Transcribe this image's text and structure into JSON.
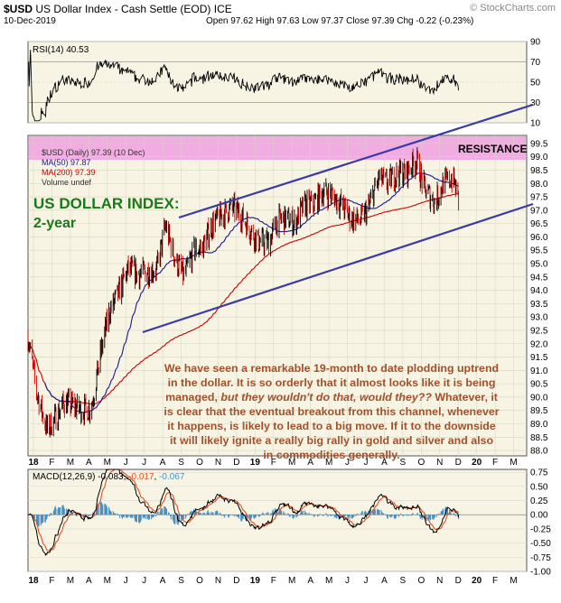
{
  "header": {
    "symbol": "$USD",
    "name": "US Dollar Index - Cash Settle (EOD)",
    "exchange": "ICE",
    "credit": "© StockCharts.com",
    "date": "10-Dec-2019",
    "ohlc": "Open 97.62  High 97.63  Low 97.37  Close 97.39  Chg -0.22 (-0.23%)"
  },
  "rsi_panel": {
    "label": "RSI(14) 40.53",
    "ticks": [
      "90",
      "70",
      "50",
      "30",
      "10"
    ]
  },
  "price_panel": {
    "legend_main": "$USD (Daily) 97.39 (10 Dec)",
    "legend_ma50": "MA(50) 97.87",
    "legend_ma200": "MA(200) 97.39",
    "legend_volume": "Volume undef",
    "resistance_label": "RESISTANCE",
    "title_line1": "US DOLLAR INDEX:",
    "title_line2": "2-year",
    "note_line1": "We have seen a remarkable 19-month to date plodding uptrend",
    "note_line2": "in the dollar. It is so orderly that it almost looks like it is being",
    "note_line3a": "managed, ",
    "note_line3b": "but they wouldn't do that, would they??",
    "note_line3c": " Whatever, it",
    "note_line4": "is clear that the eventual breakout from this channel, whenever",
    "note_line5": "it happens, is likely to lead to a big move. If it to the downside",
    "note_line6": "it will likely ignite a really big rally in gold and silver and also",
    "note_line7": "in commodities generally.",
    "ticks": [
      "99.5",
      "99.0",
      "98.5",
      "98.0",
      "97.5",
      "97.0",
      "96.5",
      "96.0",
      "95.5",
      "95.0",
      "94.5",
      "94.0",
      "93.5",
      "93.0",
      "92.5",
      "92.0",
      "91.5",
      "91.0",
      "90.5",
      "90.0",
      "89.5",
      "89.0",
      "88.5",
      "88.0"
    ]
  },
  "macd_panel": {
    "label": "MACD(12,26,9)",
    "macd": "-0.083",
    "signal": "-0.017",
    "hist": "-0.067",
    "ticks": [
      "0.75",
      "0.50",
      "0.25",
      "0.00",
      "-0.25",
      "-0.50",
      "-0.75",
      "-1.00"
    ]
  },
  "months": [
    "18",
    "F",
    "M",
    "A",
    "M",
    "J",
    "J",
    "A",
    "S",
    "O",
    "N",
    "D",
    "19",
    "F",
    "M",
    "A",
    "M",
    "J",
    "J",
    "A",
    "S",
    "O",
    "N",
    "D",
    "20",
    "F",
    "M"
  ],
  "colors": {
    "price_bar_up": "#000000",
    "price_bar_down": "#cc0000",
    "ma50": "#1a1a8c",
    "ma200": "#cc0000",
    "channel": "#3a3aa8",
    "resistance_band": "#f0a0e0",
    "note_text": "#a0522d",
    "title_text": "#1a7a1a",
    "macd_line": "#000000",
    "signal_line": "#e05020",
    "histogram": "#4a90c0",
    "plot_bg": "#f7f4e4"
  },
  "chart_data": {
    "type": "line",
    "title": "US DOLLAR INDEX: 2-year",
    "x_axis": "Jan 2018 – Mar 2020 (daily)",
    "series": [
      {
        "name": "$USD (Daily)",
        "points": [
          [
            "2018-01-01",
            92.3
          ],
          [
            "2018-01-15",
            90.2
          ],
          [
            "2018-02-01",
            88.8
          ],
          [
            "2018-02-15",
            89.2
          ],
          [
            "2018-03-01",
            89.8
          ],
          [
            "2018-03-15",
            89.7
          ],
          [
            "2018-04-01",
            89.5
          ],
          [
            "2018-04-15",
            89.6
          ],
          [
            "2018-05-01",
            91.7
          ],
          [
            "2018-05-15",
            93.2
          ],
          [
            "2018-06-01",
            94.0
          ],
          [
            "2018-06-15",
            94.8
          ],
          [
            "2018-07-01",
            94.6
          ],
          [
            "2018-07-15",
            94.7
          ],
          [
            "2018-08-01",
            94.8
          ],
          [
            "2018-08-15",
            96.4
          ],
          [
            "2018-09-01",
            95.1
          ],
          [
            "2018-09-15",
            94.5
          ],
          [
            "2018-10-01",
            95.5
          ],
          [
            "2018-10-15",
            95.6
          ],
          [
            "2018-11-01",
            96.5
          ],
          [
            "2018-11-15",
            96.8
          ],
          [
            "2018-12-01",
            97.1
          ],
          [
            "2018-12-15",
            96.9
          ],
          [
            "2019-01-01",
            96.3
          ],
          [
            "2019-01-15",
            95.8
          ],
          [
            "2019-02-01",
            95.8
          ],
          [
            "2019-02-15",
            96.6
          ],
          [
            "2019-03-01",
            96.7
          ],
          [
            "2019-03-15",
            96.5
          ],
          [
            "2019-04-01",
            97.2
          ],
          [
            "2019-04-15",
            97.2
          ],
          [
            "2019-05-01",
            97.7
          ],
          [
            "2019-05-15",
            97.6
          ],
          [
            "2019-06-01",
            97.2
          ],
          [
            "2019-06-15",
            96.7
          ],
          [
            "2019-07-01",
            96.6
          ],
          [
            "2019-07-15",
            97.1
          ],
          [
            "2019-08-01",
            98.2
          ],
          [
            "2019-08-15",
            98.0
          ],
          [
            "2019-09-01",
            98.4
          ],
          [
            "2019-09-15",
            98.4
          ],
          [
            "2019-10-01",
            98.9
          ],
          [
            "2019-10-15",
            97.8
          ],
          [
            "2019-11-01",
            97.3
          ],
          [
            "2019-11-15",
            98.0
          ],
          [
            "2019-12-01",
            98.2
          ],
          [
            "2019-12-10",
            97.39
          ]
        ]
      },
      {
        "name": "MA(50)",
        "last": 97.87
      },
      {
        "name": "MA(200)",
        "last": 97.39
      }
    ],
    "ylim": [
      87.8,
      99.8
    ],
    "rsi": {
      "last": 40.53,
      "ylim": [
        10,
        90
      ]
    },
    "macd": {
      "macd": -0.083,
      "signal": -0.017,
      "histogram": -0.067,
      "ylim": [
        -1.0,
        0.8
      ]
    },
    "resistance_zone": [
      99.2,
      99.85
    ],
    "grid": true
  }
}
